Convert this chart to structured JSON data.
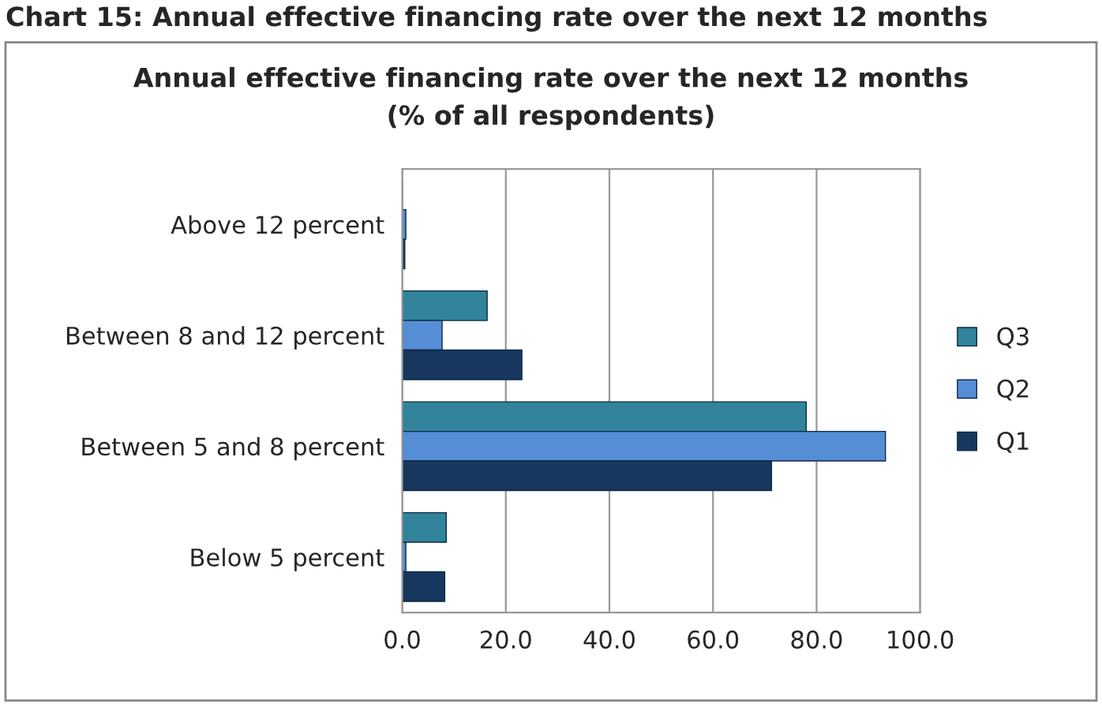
{
  "chart_data": {
    "type": "bar",
    "orientation": "horizontal",
    "title": "Annual effective financing rate over the next 12 months\n(% of all respondents)",
    "annotations": [
      "Chart 15: Annual effective financing rate over the next 12 months"
    ],
    "categories": [
      "Above 12 percent",
      "Between 8 and 12 percent",
      "Between 5 and 8 percent",
      "Below 5 percent"
    ],
    "series": [
      {
        "name": "Q3",
        "color": "#31849b",
        "values": [
          null,
          16.4,
          78,
          8.5
        ]
      },
      {
        "name": "Q2",
        "color": "#558ed5",
        "values": [
          0.7,
          7.7,
          93.3,
          0.7
        ]
      },
      {
        "name": "Q1",
        "color": "#17375e",
        "values": [
          0.5,
          23.1,
          71.3,
          8.2
        ]
      }
    ],
    "xlim": [
      0,
      100
    ],
    "xticks": [
      {
        "value": 0,
        "label": "0.0"
      },
      {
        "value": 20,
        "label": "20.0"
      },
      {
        "value": 40,
        "label": "40.0"
      },
      {
        "value": 60,
        "label": "60.0"
      },
      {
        "value": 80,
        "label": "80.0"
      },
      {
        "value": 100,
        "label": "100.0"
      }
    ],
    "grid": "x",
    "legend": "right"
  }
}
